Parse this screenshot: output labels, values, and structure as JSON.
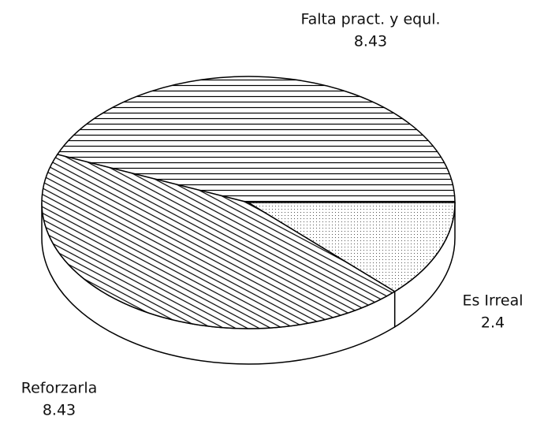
{
  "chart_data": {
    "type": "pie",
    "categories": [
      "Falta pract. y equl.",
      "Reforzarla",
      "Es Irreal"
    ],
    "values": [
      8.43,
      8.43,
      2.4
    ],
    "hatches": [
      "horizontal",
      "diagonal",
      "dots"
    ],
    "color": "#000000"
  }
}
